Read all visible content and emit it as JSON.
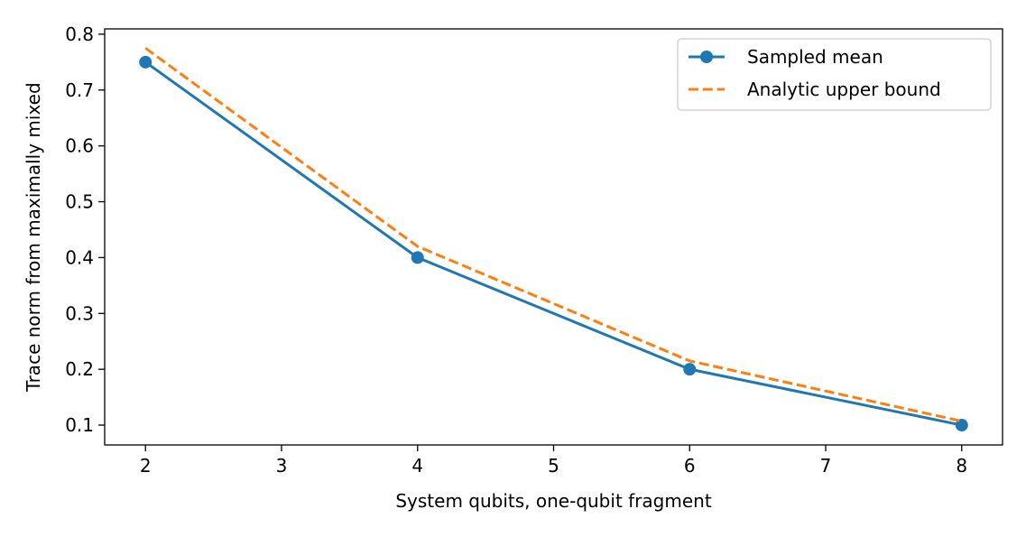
{
  "chart_data": {
    "type": "line",
    "title": "",
    "xlabel": "System qubits, one-qubit fragment",
    "ylabel": "Trace norm from maximally mixed",
    "x": [
      2,
      4,
      6,
      8
    ],
    "xlim": [
      1.7,
      8.3
    ],
    "ylim": [
      0.0645,
      0.8095
    ],
    "xticks": [
      2,
      3,
      4,
      5,
      6,
      7,
      8
    ],
    "yticks": [
      0.1,
      0.2,
      0.3,
      0.4,
      0.5,
      0.6,
      0.7,
      0.8
    ],
    "ytick_labels": [
      "0.1",
      "0.2",
      "0.3",
      "0.4",
      "0.5",
      "0.6",
      "0.7",
      "0.8"
    ],
    "grid": false,
    "legend_position": "top-right",
    "series": [
      {
        "name": "Sampled mean",
        "values": [
          0.75,
          0.4,
          0.2,
          0.1
        ],
        "color": "#1f77b4",
        "style": "solid",
        "marker": "circle"
      },
      {
        "name": "Analytic upper bound",
        "values": [
          0.775,
          0.42,
          0.215,
          0.107
        ],
        "color": "#ff7f0e",
        "style": "dashed",
        "marker": "none"
      }
    ]
  }
}
